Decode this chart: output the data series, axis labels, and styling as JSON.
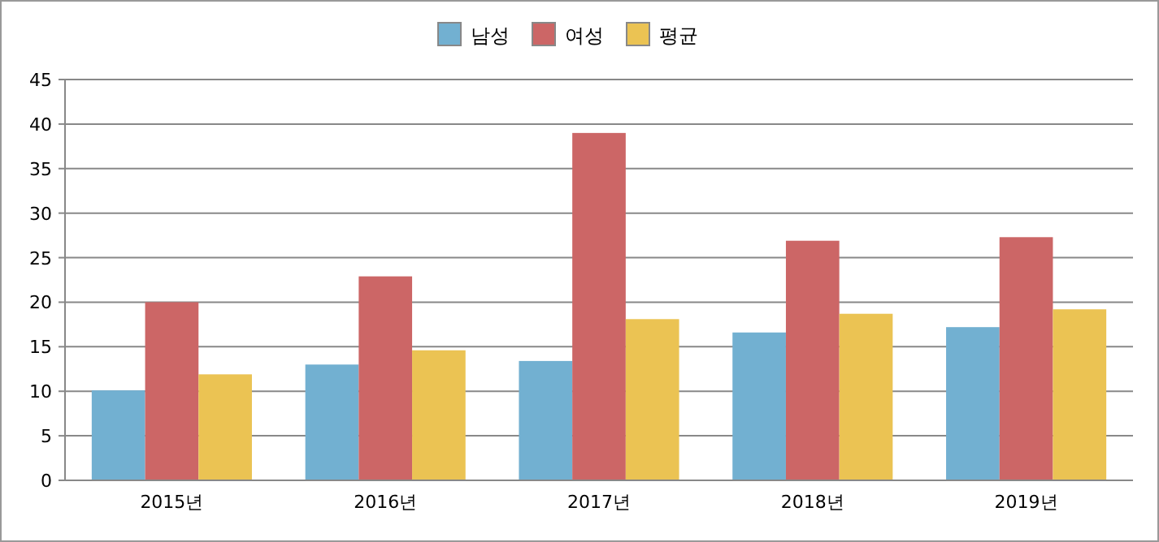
{
  "chart_data": {
    "type": "bar",
    "categories": [
      "2015년",
      "2016년",
      "2017년",
      "2018년",
      "2019년"
    ],
    "series": [
      {
        "name": "남성",
        "color": "#72b0d1",
        "values": [
          10.1,
          13.0,
          13.4,
          16.6,
          17.2
        ]
      },
      {
        "name": "여성",
        "color": "#cc6666",
        "values": [
          20.0,
          22.9,
          39.0,
          26.9,
          27.3
        ]
      },
      {
        "name": "평균",
        "color": "#ebc353",
        "values": [
          11.9,
          14.6,
          18.1,
          18.7,
          19.2
        ]
      }
    ],
    "ylim": [
      0,
      45
    ],
    "yticks": [
      0,
      5,
      10,
      15,
      20,
      25,
      30,
      35,
      40,
      45
    ],
    "grid": "y",
    "legend": "top"
  }
}
